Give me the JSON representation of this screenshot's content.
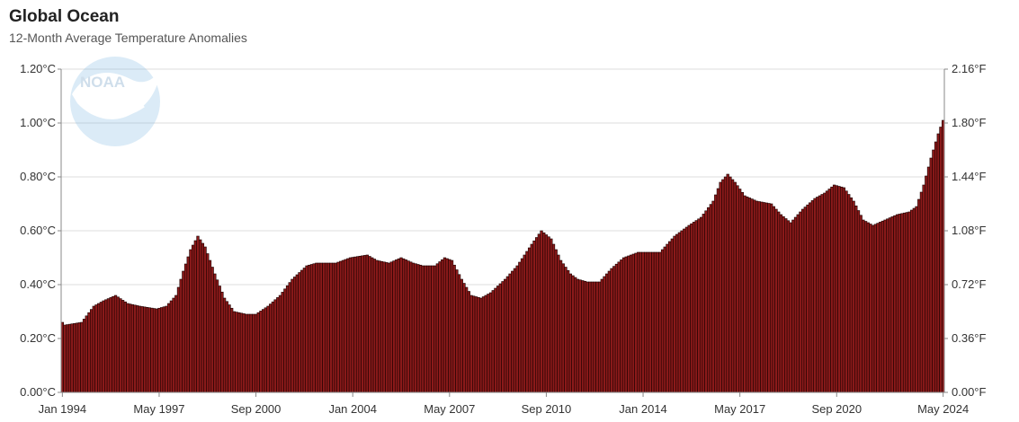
{
  "header": {
    "title": "Global Ocean",
    "subtitle": "12-Month Average Temperature Anomalies"
  },
  "logo": {
    "text": "NOAA",
    "icon": "noaa-logo-icon"
  },
  "colors": {
    "bar_fill": "#8b1a1a",
    "bar_stroke": "#1a0000",
    "grid": "#dddddd",
    "axis": "#888888"
  },
  "chart_data": {
    "type": "bar",
    "title": "Global Ocean",
    "subtitle": "12-Month Average Temperature Anomalies",
    "x_start": "Jan 1994",
    "x_end": "May 2024",
    "x_ticks": [
      "Jan 1994",
      "May 1997",
      "Sep 2000",
      "Jan 2004",
      "May 2007",
      "Sep 2010",
      "Jan 2014",
      "May 2017",
      "Sep 2020",
      "May 2024"
    ],
    "y_left_ticks": [
      "0.00°C",
      "0.20°C",
      "0.40°C",
      "0.60°C",
      "0.80°C",
      "1.00°C",
      "1.20°C"
    ],
    "y_right_ticks": [
      "0.00°F",
      "0.36°F",
      "0.72°F",
      "1.08°F",
      "1.44°F",
      "1.80°F",
      "2.16°F"
    ],
    "ylim": [
      0,
      1.2
    ],
    "grid": true,
    "series": [
      {
        "control_points": [
          [
            "Jan 1994",
            0.26
          ],
          [
            "Feb 1994",
            0.25
          ],
          [
            "Sep 1994",
            0.26
          ],
          [
            "Feb 1995",
            0.32
          ],
          [
            "Jun 1995",
            0.34
          ],
          [
            "Nov 1995",
            0.36
          ],
          [
            "Apr 1996",
            0.33
          ],
          [
            "Sep 1996",
            0.32
          ],
          [
            "Apr 1997",
            0.31
          ],
          [
            "Aug 1997",
            0.32
          ],
          [
            "Dec 1997",
            0.36
          ],
          [
            "Mar 1998",
            0.45
          ],
          [
            "Jun 1998",
            0.53
          ],
          [
            "Sep 1998",
            0.58
          ],
          [
            "Dec 1998",
            0.54
          ],
          [
            "Apr 1999",
            0.44
          ],
          [
            "Aug 1999",
            0.35
          ],
          [
            "Dec 1999",
            0.3
          ],
          [
            "May 2000",
            0.29
          ],
          [
            "Sep 2000",
            0.29
          ],
          [
            "Feb 2001",
            0.32
          ],
          [
            "Jul 2001",
            0.36
          ],
          [
            "Dec 2001",
            0.42
          ],
          [
            "Jun 2002",
            0.47
          ],
          [
            "Oct 2002",
            0.48
          ],
          [
            "Jun 2003",
            0.48
          ],
          [
            "Dec 2003",
            0.5
          ],
          [
            "Jul 2004",
            0.51
          ],
          [
            "Nov 2004",
            0.49
          ],
          [
            "Apr 2005",
            0.48
          ],
          [
            "Sep 2005",
            0.5
          ],
          [
            "Feb 2006",
            0.48
          ],
          [
            "Jun 2006",
            0.47
          ],
          [
            "Nov 2006",
            0.47
          ],
          [
            "Mar 2007",
            0.5
          ],
          [
            "Jun 2007",
            0.49
          ],
          [
            "Oct 2007",
            0.42
          ],
          [
            "Feb 2008",
            0.36
          ],
          [
            "Jun 2008",
            0.35
          ],
          [
            "Oct 2008",
            0.37
          ],
          [
            "Apr 2009",
            0.42
          ],
          [
            "Sep 2009",
            0.47
          ],
          [
            "Mar 2010",
            0.55
          ],
          [
            "Jul 2010",
            0.6
          ],
          [
            "Nov 2010",
            0.57
          ],
          [
            "Mar 2011",
            0.49
          ],
          [
            "Jul 2011",
            0.44
          ],
          [
            "Oct 2011",
            0.42
          ],
          [
            "Feb 2012",
            0.41
          ],
          [
            "Jul 2012",
            0.41
          ],
          [
            "Dec 2012",
            0.46
          ],
          [
            "May 2013",
            0.5
          ],
          [
            "Nov 2013",
            0.52
          ],
          [
            "Aug 2014",
            0.52
          ],
          [
            "Feb 2015",
            0.58
          ],
          [
            "Aug 2015",
            0.62
          ],
          [
            "Jan 2016",
            0.65
          ],
          [
            "Jun 2016",
            0.71
          ],
          [
            "Sep 2016",
            0.78
          ],
          [
            "Dec 2016",
            0.81
          ],
          [
            "Mar 2017",
            0.78
          ],
          [
            "Jul 2017",
            0.73
          ],
          [
            "Dec 2017",
            0.71
          ],
          [
            "Jun 2018",
            0.7
          ],
          [
            "Oct 2018",
            0.66
          ],
          [
            "Feb 2019",
            0.63
          ],
          [
            "Jul 2019",
            0.68
          ],
          [
            "Dec 2019",
            0.72
          ],
          [
            "Apr 2020",
            0.74
          ],
          [
            "Aug 2020",
            0.77
          ],
          [
            "Dec 2020",
            0.76
          ],
          [
            "Apr 2021",
            0.71
          ],
          [
            "Aug 2021",
            0.64
          ],
          [
            "Dec 2021",
            0.62
          ],
          [
            "May 2022",
            0.64
          ],
          [
            "Oct 2022",
            0.66
          ],
          [
            "Mar 2023",
            0.67
          ],
          [
            "Jun 2023",
            0.69
          ],
          [
            "Sep 2023",
            0.77
          ],
          [
            "Dec 2023",
            0.87
          ],
          [
            "Mar 2024",
            0.96
          ],
          [
            "May 2024",
            1.01
          ]
        ]
      }
    ]
  }
}
